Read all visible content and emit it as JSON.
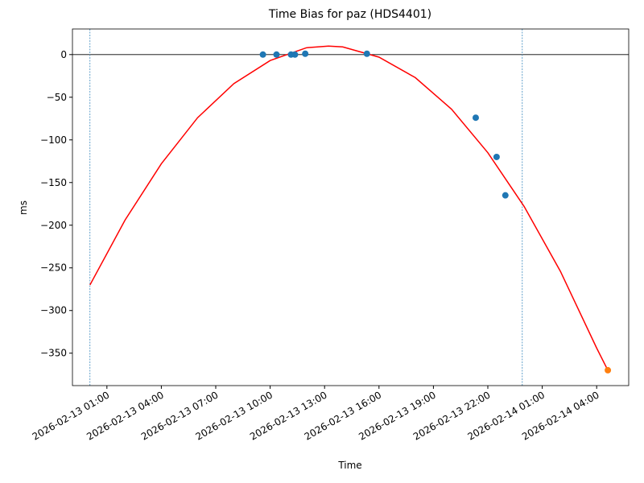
{
  "chart_data": {
    "type": "scatter",
    "title": "Time Bias for paz (HDS4401)",
    "xlabel": "Time",
    "ylabel": "ms",
    "xlim": [
      "2026-02-12 23:06",
      "2026-02-14 05:46"
    ],
    "xticks": [
      "2026-02-13 01:00",
      "2026-02-13 04:00",
      "2026-02-13 07:00",
      "2026-02-13 10:00",
      "2026-02-13 13:00",
      "2026-02-13 16:00",
      "2026-02-13 19:00",
      "2026-02-13 22:00",
      "2026-02-14 01:00",
      "2026-02-14 04:00"
    ],
    "ylim": [
      -388,
      30
    ],
    "yticks": [
      {
        "value": 0,
        "label": "0"
      },
      {
        "value": -50,
        "label": "−50"
      },
      {
        "value": -100,
        "label": "−100"
      },
      {
        "value": -150,
        "label": "−150"
      },
      {
        "value": -200,
        "label": "−200"
      },
      {
        "value": -250,
        "label": "−250"
      },
      {
        "value": -300,
        "label": "−300"
      },
      {
        "value": -350,
        "label": "−350"
      }
    ],
    "hline": 0,
    "vlines": [
      "2026-02-13 00:04",
      "2026-02-13 23:54"
    ],
    "series": [
      {
        "kind": "line",
        "color": "#ff0000",
        "x": [
          "2026-02-13 00:04",
          "2026-02-13 02:00",
          "2026-02-13 04:00",
          "2026-02-13 06:00",
          "2026-02-13 08:00",
          "2026-02-13 10:00",
          "2026-02-13 12:00",
          "2026-02-13 13:13",
          "2026-02-13 14:00",
          "2026-02-13 16:00",
          "2026-02-13 18:00",
          "2026-02-13 20:00",
          "2026-02-13 22:00",
          "2026-02-14 00:00",
          "2026-02-14 02:00",
          "2026-02-14 04:00",
          "2026-02-14 04:37"
        ],
        "values": [
          -270,
          -194,
          -128,
          -74,
          -34,
          -7,
          8,
          10,
          9,
          -3,
          -27,
          -64,
          -115,
          -178,
          -254,
          -344,
          -370
        ]
      },
      {
        "kind": "points",
        "color": "#1f77b4",
        "x": [
          "2026-02-13 09:36",
          "2026-02-13 10:21",
          "2026-02-13 11:09",
          "2026-02-13 11:22",
          "2026-02-13 11:56",
          "2026-02-13 15:20",
          "2026-02-13 21:20",
          "2026-02-13 22:29",
          "2026-02-13 22:58"
        ],
        "values": [
          0,
          0,
          0,
          0,
          1,
          1,
          -74,
          -120,
          -165
        ]
      },
      {
        "kind": "points",
        "color": "#ff7f0e",
        "x": [
          "2026-02-14 04:37"
        ],
        "values": [
          -370
        ]
      }
    ]
  }
}
